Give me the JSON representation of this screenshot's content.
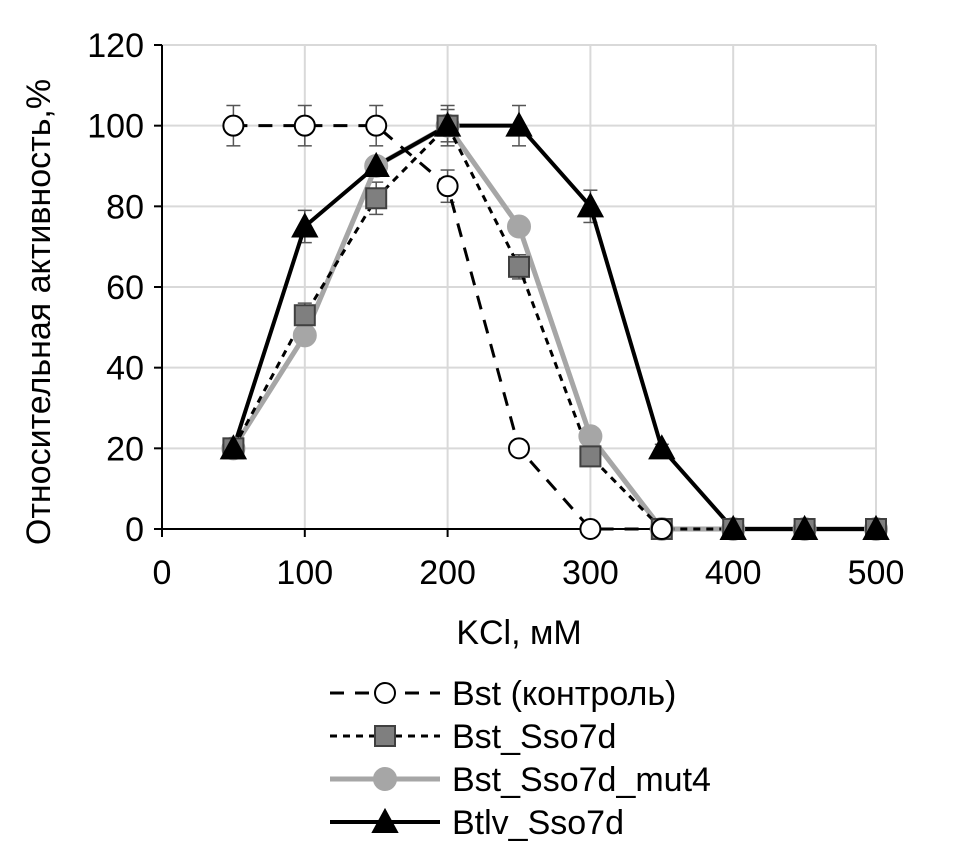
{
  "chart_data": {
    "type": "line",
    "xlabel": "KCl, мМ",
    "ylabel": "Относительная активность,%",
    "xlim": [
      0,
      500
    ],
    "ylim": [
      0,
      120
    ],
    "x_ticks": [
      0,
      100,
      200,
      300,
      400,
      500
    ],
    "y_ticks": [
      0,
      20,
      40,
      60,
      80,
      100,
      120
    ],
    "grid": true,
    "legend_position": "bottom",
    "series": [
      {
        "name": "Bst (контроль)",
        "x": [
          50,
          100,
          150,
          200,
          250,
          300,
          350
        ],
        "y": [
          100,
          100,
          100,
          85,
          20,
          0,
          0
        ],
        "error": [
          5,
          5,
          5,
          4,
          0,
          0,
          0
        ],
        "line_color": "#000000",
        "line_style": "long-dash",
        "marker": "circle",
        "marker_fill": "#ffffff",
        "marker_stroke": "#000000"
      },
      {
        "name": "Bst_Sso7d",
        "x": [
          50,
          100,
          150,
          200,
          250,
          300,
          350,
          400,
          450,
          500
        ],
        "y": [
          20,
          53,
          82,
          100,
          65,
          18,
          0,
          0,
          0,
          0
        ],
        "error": [
          0,
          3,
          4,
          4,
          3,
          2,
          0,
          0,
          0,
          0
        ],
        "line_color": "#000000",
        "line_style": "short-dash",
        "marker": "square",
        "marker_fill": "#7f7f7f",
        "marker_stroke": "#404040"
      },
      {
        "name": "Bst_Sso7d_mut4",
        "x": [
          50,
          100,
          150,
          200,
          250,
          300,
          350,
          400,
          450,
          500
        ],
        "y": [
          20,
          48,
          90,
          100,
          75,
          23,
          0,
          0,
          0,
          0
        ],
        "error": [
          0,
          0,
          0,
          0,
          0,
          0,
          0,
          0,
          0,
          0
        ],
        "line_color": "#a6a6a6",
        "line_style": "solid",
        "marker": "circle",
        "marker_fill": "#a6a6a6",
        "marker_stroke": "#a6a6a6"
      },
      {
        "name": "Btlv_Sso7d",
        "x": [
          50,
          100,
          150,
          200,
          250,
          300,
          350,
          400,
          450,
          500
        ],
        "y": [
          20,
          75,
          90,
          100,
          100,
          80,
          20,
          0,
          0,
          0
        ],
        "error": [
          0,
          4,
          0,
          5,
          5,
          4,
          1,
          0,
          0,
          0
        ],
        "line_color": "#000000",
        "line_style": "solid",
        "marker": "triangle",
        "marker_fill": "#000000",
        "marker_stroke": "#000000"
      }
    ]
  }
}
